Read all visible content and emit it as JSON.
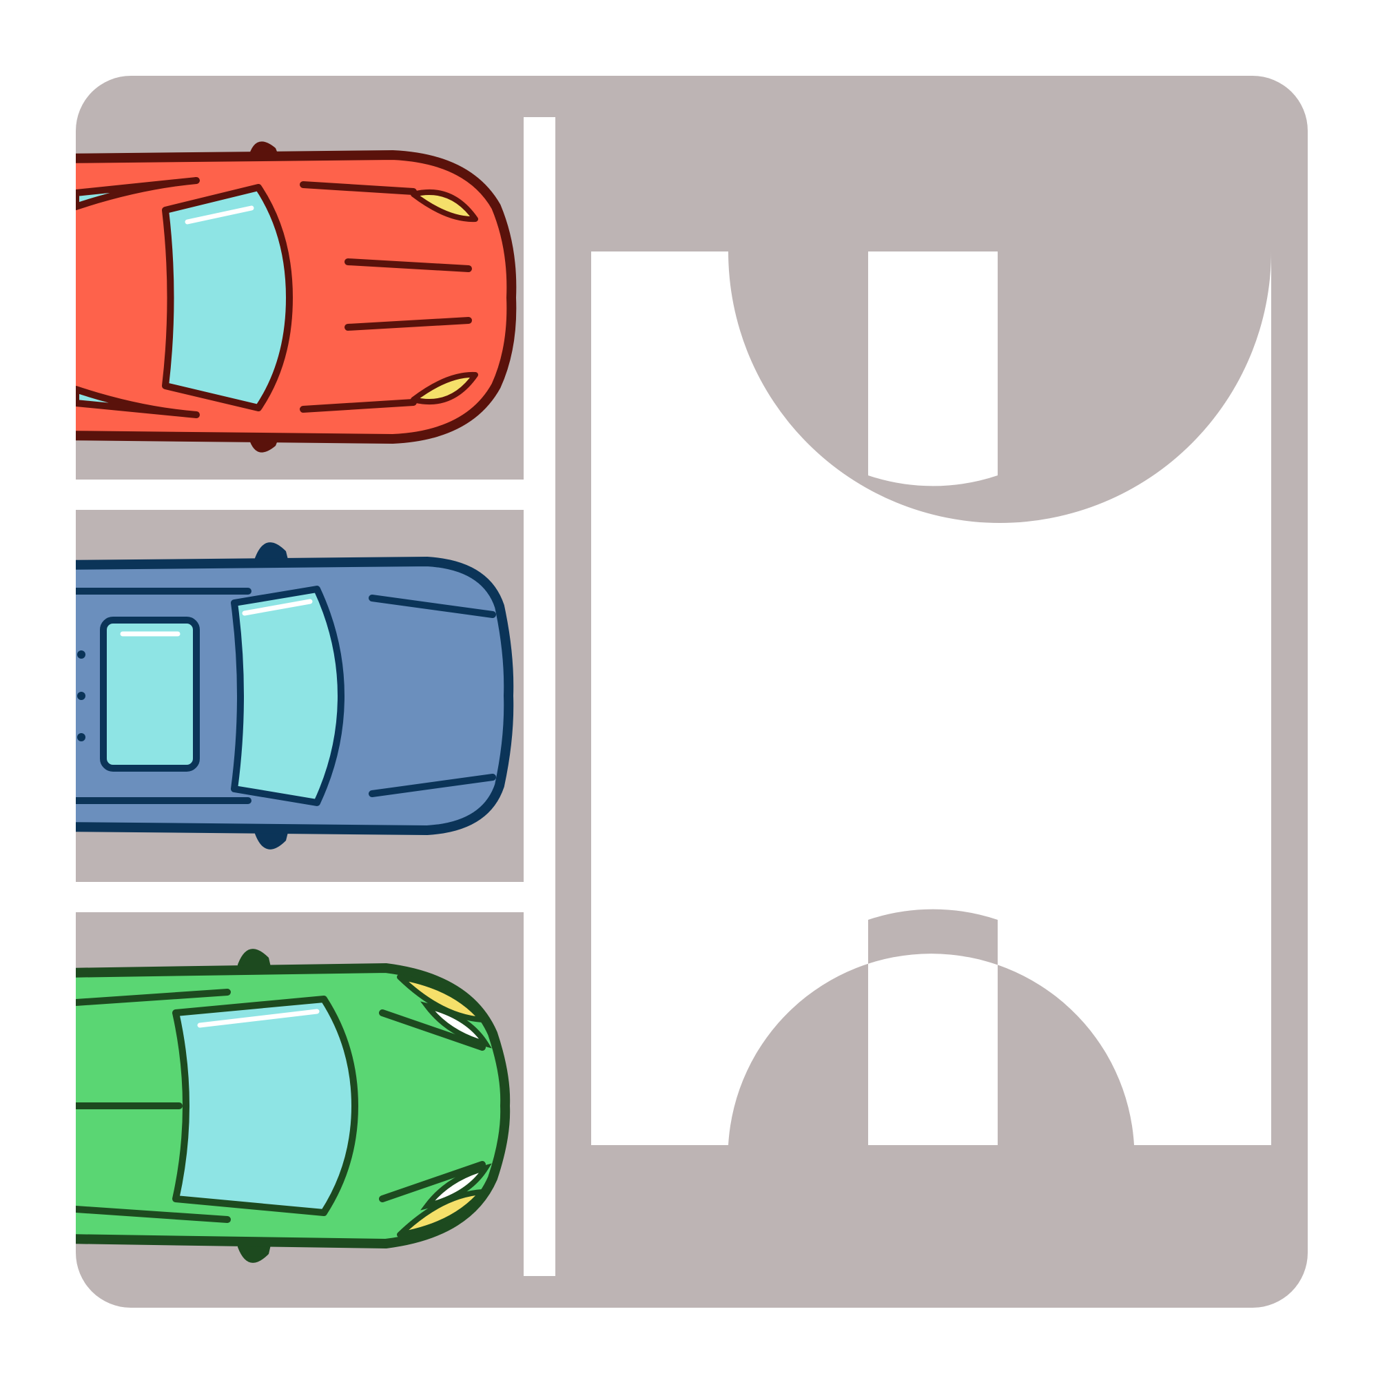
{
  "logo": {
    "background_color": "#bdb4b4",
    "mark_color": "#ffffff",
    "divider_color": "#ffffff",
    "emblem_icon": "utn-emblem-icon",
    "background_shape": "rounded-square"
  },
  "parking_lot": {
    "spaces": 3,
    "cars": [
      {
        "icon": "car-top-view-icon",
        "body_color": "#fe624b",
        "outline_color": "#5a120b",
        "window_color": "#8ee4e4",
        "headlight_color": "#f5e06a"
      },
      {
        "icon": "car-top-view-icon",
        "body_color": "#6b8fbd",
        "outline_color": "#0b3458",
        "window_color": "#8ee4e4"
      },
      {
        "icon": "car-top-view-icon",
        "body_color": "#5ad673",
        "outline_color": "#1d4a1f",
        "window_color": "#8ee4e4",
        "headlight_color": "#f5e06a"
      }
    ]
  }
}
